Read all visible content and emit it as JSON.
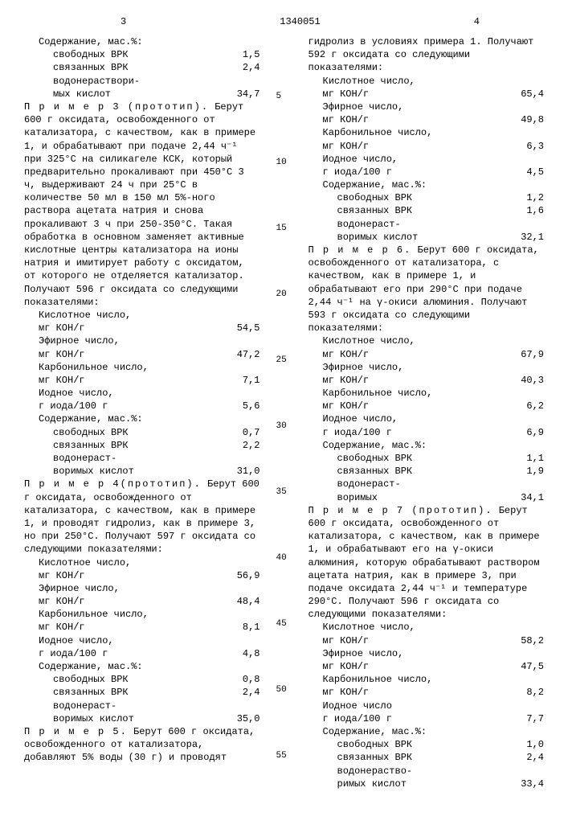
{
  "doc_number": "1340051",
  "page_left": "3",
  "page_right": "4",
  "line_markers": [
    "5",
    "10",
    "15",
    "20",
    "25",
    "30",
    "35",
    "40",
    "45",
    "50",
    "55"
  ],
  "col1": {
    "intro_lines": [
      "Содержание, мас.%:"
    ],
    "intro_rows": [
      {
        "label": "свободных ВРК",
        "val": "1,5"
      },
      {
        "label": "связанных ВРК",
        "val": "2,4"
      },
      {
        "label": "водонераствори-",
        "val": ""
      },
      {
        "label": "мых кислот",
        "val": "34,7"
      }
    ],
    "ex3_title": "П р и м е р  3 (прототип).",
    "ex3_body": "Берут 600 г оксидата, освобожденного от катализатора, с качеством, как в примере 1, и обрабатывают при подаче 2,44 ч⁻¹ при 325°С на силикагеле КСК, который предварительно прокаливают при 450°С 3 ч, выдерживают 24 ч при 25°С в количестве 50 мл в 150 мл 5%-ного раствора ацетата натрия и снова прокаливают 3 ч при 250-350°С. Такая обработка в основном заменяет активные кислотные центры катализатора на ионы натрия и имитирует работу с оксидатом, от которого не отделяется катализатор. Получают 596 г оксидата со следующими показателями:",
    "ex3_rows": [
      {
        "label": "Кислотное число,",
        "sub": "мг КОН/г",
        "val": "54,5"
      },
      {
        "label": "Эфирное число,",
        "sub": "мг КОН/г",
        "val": "47,2"
      },
      {
        "label": "Карбонильное число,",
        "sub": "мг КОН/г",
        "val": "7,1"
      },
      {
        "label": "Иодное число,",
        "sub": "г иода/100 г",
        "val": "5,6"
      }
    ],
    "ex3_content": "Содержание, мас.%:",
    "ex3_content_rows": [
      {
        "label": "свободных ВРК",
        "val": "0,7"
      },
      {
        "label": "связанных ВРК",
        "val": "2,2"
      },
      {
        "label": "водонераст-",
        "val": ""
      },
      {
        "label": "воримых кислот",
        "val": "31,0"
      }
    ],
    "ex4_title": "П р и м е р  4(прототип).",
    "ex4_body": "Берут 600 г оксидата, освобожденного от катализатора, с качеством, как в примере 1, и проводят гидролиз, как в примере 3, но при 250°С. Получают 597 г оксидата со следующими показателями:",
    "ex4_rows": [
      {
        "label": "Кислотное число,",
        "sub": "мг КОН/г",
        "val": "56,9"
      },
      {
        "label": "Эфирное  число,",
        "sub": "мг КОН/г",
        "val": "48,4"
      },
      {
        "label": "Карбонильное число,",
        "sub": "мг КОН/г",
        "val": "8,1"
      },
      {
        "label": "Иодное число,",
        "sub": "г иода/100 г",
        "val": "4,8"
      }
    ],
    "ex4_content": "Содержание, мас.%:",
    "ex4_content_rows": [
      {
        "label": "свободных ВРК",
        "val": "0,8"
      },
      {
        "label": "связанных ВРК",
        "val": "2,4"
      },
      {
        "label": "водонераст-",
        "val": ""
      },
      {
        "label": "воримых кислот",
        "val": "35,0"
      }
    ],
    "ex5_title": "П р и м е р  5.",
    "ex5_body": "Берут 600 г оксидата, освобожденного от катализатора, добавляют 5% воды (30 г) и проводят"
  },
  "col2": {
    "intro": "гидролиз в условиях примера 1. Получают 592 г оксидата со следующими показателями:",
    "intro_rows": [
      {
        "label": "Кислотное число,",
        "sub": "мг КОН/г",
        "val": "65,4"
      },
      {
        "label": "Эфирное число,",
        "sub": "мг КОН/г",
        "val": "49,8"
      },
      {
        "label": "Карбонильное число,",
        "sub": "мг КОН/г",
        "val": "6,3"
      },
      {
        "label": "Иодное число,",
        "sub": "г иода/100 г",
        "val": "4,5"
      }
    ],
    "intro_content": "Содержание, мас.%:",
    "intro_content_rows": [
      {
        "label": "свободных ВРК",
        "val": "1,2"
      },
      {
        "label": "связанных ВРК",
        "val": "1,6"
      },
      {
        "label": "водонераст-",
        "val": ""
      },
      {
        "label": "воримых кислот",
        "val": "32,1"
      }
    ],
    "ex6_title": "П р и м е р  6.",
    "ex6_body": "Берут 600 г оксидата, освобожденного от катализатора, с качеством, как в примере 1, и обрабатывают его при 290°С при подаче 2,44 ч⁻¹ на γ-окиси алюминия. Получают 593 г оксидата со следующими показателями:",
    "ex6_rows": [
      {
        "label": "Кислотное число,",
        "sub": "мг КОН/г",
        "val": "67,9"
      },
      {
        "label": "Эфирное число,",
        "sub": "мг КОН/г",
        "val": "40,3"
      },
      {
        "label": "Карбонильное число,",
        "sub": "мг КОН/г",
        "val": "6,2"
      },
      {
        "label": "Иодное число,",
        "sub": "г иода/100 г",
        "val": "6,9"
      }
    ],
    "ex6_content": "Содержание, мас.%:",
    "ex6_content_rows": [
      {
        "label": "свободных ВРК",
        "val": "1,1"
      },
      {
        "label": "связанных ВРК",
        "val": "1,9"
      },
      {
        "label": "водонераст-",
        "val": ""
      },
      {
        "label": "воримых",
        "val": "34,1"
      }
    ],
    "ex7_title": "П р и м е р  7 (прототип).",
    "ex7_body": "Берут 600 г оксидата, освобожденного от катализатора, с качеством, как в примере 1, и обрабатывают его на γ-окиси алюминия, которую обрабатывают раствором ацетата натрия, как в примере 3, при подаче оксидата 2,44 ч⁻¹ и температуре 290°С. Получают 596 г оксидата со следующими показателями:",
    "ex7_rows": [
      {
        "label": "Кислотное число,",
        "sub": "мг КОН/г",
        "val": "58,2"
      },
      {
        "label": "Эфирное число,",
        "sub": "мг КОН/г",
        "val": "47,5"
      },
      {
        "label": "Карбонильное число,",
        "sub": "мг КОН/г",
        "val": "8,2"
      },
      {
        "label": "Иодное число",
        "sub": "г иода/100 г",
        "val": "7,7"
      }
    ],
    "ex7_content": "Содержание, мас.%:",
    "ex7_content_rows": [
      {
        "label": "свободных ВРК",
        "val": "1,0"
      },
      {
        "label": "связанных ВРК",
        "val": "2,4"
      },
      {
        "label": "водонераство-",
        "val": ""
      },
      {
        "label": "римых кислот",
        "val": "33,4"
      }
    ]
  }
}
